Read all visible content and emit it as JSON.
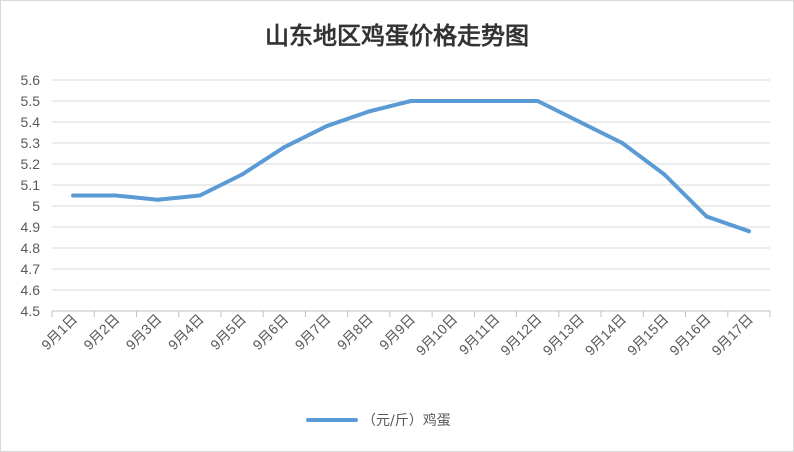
{
  "chart_data": {
    "type": "line",
    "title": "山东地区鸡蛋价格走势图",
    "xlabel": "",
    "ylabel": "",
    "categories": [
      "9月1日",
      "9月2日",
      "9月3日",
      "9月4日",
      "9月5日",
      "9月6日",
      "9月7日",
      "9月8日",
      "9月9日",
      "9月10日",
      "9月11日",
      "9月12日",
      "9月13日",
      "9月14日",
      "9月15日",
      "9月16日",
      "9月17日"
    ],
    "series": [
      {
        "name": "（元/斤）鸡蛋",
        "color": "#5b9bd5",
        "values": [
          5.05,
          5.05,
          5.03,
          5.05,
          5.15,
          5.28,
          5.38,
          5.45,
          5.5,
          5.5,
          5.5,
          5.5,
          5.4,
          5.3,
          5.15,
          4.95,
          4.88
        ]
      }
    ],
    "ylim": [
      4.5,
      5.6
    ],
    "yticks": [
      "4.5",
      "4.6",
      "4.7",
      "4.8",
      "4.9",
      "5",
      "5.1",
      "5.2",
      "5.3",
      "5.4",
      "5.5",
      "5.6"
    ],
    "grid": true,
    "legend_position": "bottom"
  }
}
